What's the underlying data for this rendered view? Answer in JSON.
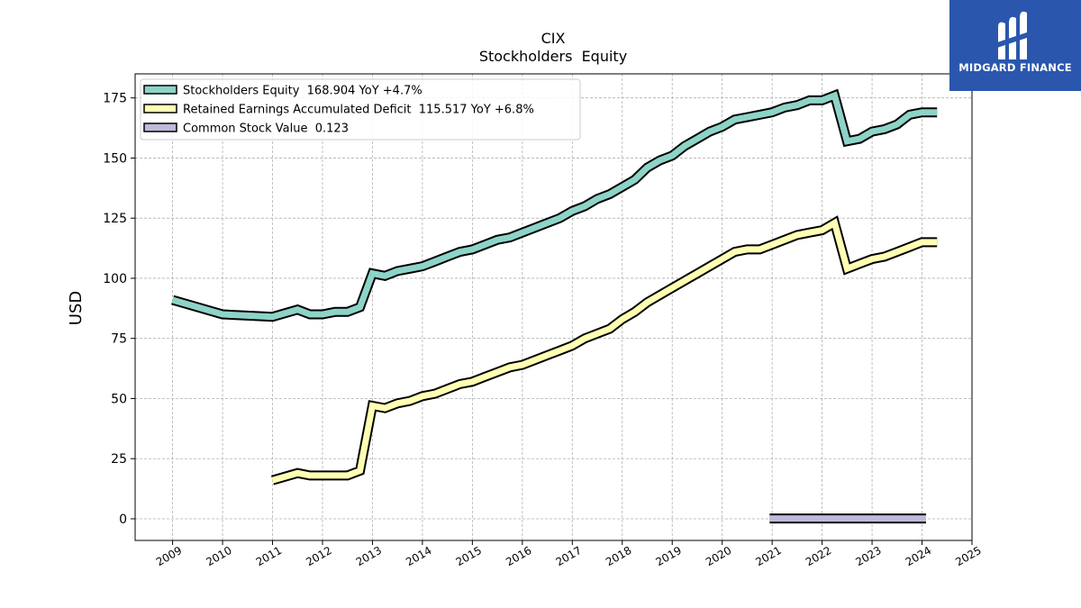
{
  "chart_data": {
    "type": "line",
    "title": "CIX",
    "subtitle": "Stockholders  Equity",
    "ylabel": "USD",
    "xlim": [
      2008.25,
      2025.0
    ],
    "ylim": [
      -9,
      185
    ],
    "yticks": [
      0,
      25,
      50,
      75,
      100,
      125,
      150,
      175
    ],
    "xticks": [
      "2009",
      "2010",
      "2011",
      "2012",
      "2013",
      "2014",
      "2015",
      "2016",
      "2017",
      "2018",
      "2019",
      "2020",
      "2021",
      "2022",
      "2023",
      "2024",
      "2025"
    ],
    "grid": true,
    "legend_position": "top-left",
    "series": [
      {
        "name": "Stockholders Equity",
        "legend_label": "Stockholders Equity  168.904 YoY +4.7%",
        "color": "#8dd3c7",
        "x": [
          2009.0,
          2010.0,
          2011.0,
          2011.5,
          2011.75,
          2012.0,
          2012.25,
          2012.5,
          2012.75,
          2013.0,
          2013.25,
          2013.5,
          2013.75,
          2014.0,
          2014.25,
          2014.5,
          2014.75,
          2015.0,
          2015.25,
          2015.5,
          2015.75,
          2016.0,
          2016.25,
          2016.5,
          2016.75,
          2017.0,
          2017.25,
          2017.5,
          2017.75,
          2018.0,
          2018.25,
          2018.5,
          2018.75,
          2019.0,
          2019.25,
          2019.5,
          2019.75,
          2020.0,
          2020.25,
          2020.5,
          2020.75,
          2021.0,
          2021.25,
          2021.5,
          2021.75,
          2022.0,
          2022.25,
          2022.5,
          2022.75,
          2023.0,
          2023.25,
          2023.5,
          2023.75,
          2024.0,
          2024.3
        ],
        "values": [
          91,
          85,
          84,
          87,
          85,
          85,
          86,
          86,
          88,
          102,
          101,
          103,
          104,
          105,
          107,
          109,
          111,
          112,
          114,
          116,
          117,
          119,
          121,
          123,
          125,
          128,
          130,
          133,
          135,
          138,
          141,
          146,
          149,
          151,
          155,
          158,
          161,
          163,
          166,
          167,
          168,
          169,
          171,
          172,
          174,
          174,
          176,
          157,
          158,
          161,
          162,
          164,
          168,
          169,
          169
        ]
      },
      {
        "name": "Retained Earnings Accumulated Deficit",
        "legend_label": "Retained Earnings Accumulated Deficit  115.517 YoY +6.8%",
        "color": "#ffffb3",
        "x": [
          2011.0,
          2011.5,
          2011.75,
          2012.0,
          2012.25,
          2012.5,
          2012.75,
          2013.0,
          2013.25,
          2013.5,
          2013.75,
          2014.0,
          2014.25,
          2014.5,
          2014.75,
          2015.0,
          2015.25,
          2015.5,
          2015.75,
          2016.0,
          2016.25,
          2016.5,
          2016.75,
          2017.0,
          2017.25,
          2017.5,
          2017.75,
          2018.0,
          2018.25,
          2018.5,
          2018.75,
          2019.0,
          2019.25,
          2019.5,
          2019.75,
          2020.0,
          2020.25,
          2020.5,
          2020.75,
          2021.0,
          2021.25,
          2021.5,
          2021.75,
          2022.0,
          2022.25,
          2022.5,
          2022.75,
          2023.0,
          2023.25,
          2023.5,
          2023.75,
          2024.0,
          2024.3
        ],
        "values": [
          16,
          19,
          18,
          18,
          18,
          18,
          20,
          47,
          46,
          48,
          49,
          51,
          52,
          54,
          56,
          57,
          59,
          61,
          63,
          64,
          66,
          68,
          70,
          72,
          75,
          77,
          79,
          83,
          86,
          90,
          93,
          96,
          99,
          102,
          105,
          108,
          111,
          112,
          112,
          114,
          116,
          118,
          119,
          120,
          123,
          104,
          106,
          108,
          109,
          111,
          113,
          115,
          115
        ]
      },
      {
        "name": "Common Stock Value",
        "legend_label": "Common Stock Value  0.123",
        "color": "#bebada",
        "x": [
          2020.95,
          2024.08
        ],
        "values": [
          0.123,
          0.123
        ]
      }
    ]
  },
  "logo": {
    "text": "MIDGARD FINANCE",
    "background": "#2a57ad"
  }
}
